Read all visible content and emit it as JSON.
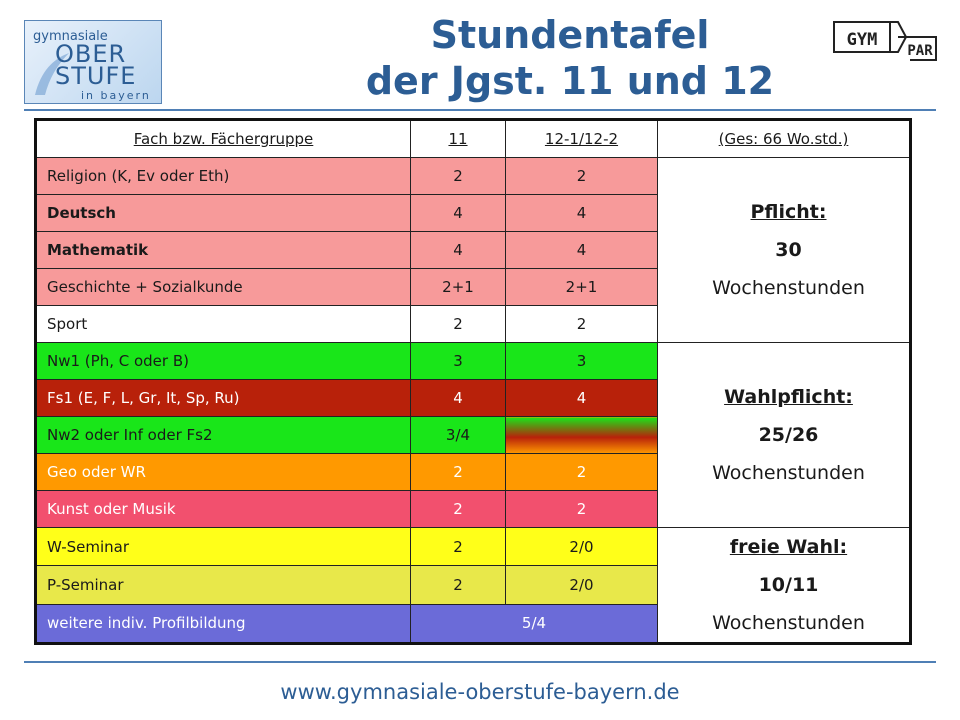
{
  "title": {
    "line1": "Stundentafel",
    "line2": "der Jgst. 11 und 12"
  },
  "logo_left": {
    "line1": "gymnasiale",
    "line2": "OBER",
    "line3": "STUFE",
    "line4": "in bayern"
  },
  "logo_right": {
    "left": "GYM",
    "right": "PAR"
  },
  "table": {
    "headers": [
      "Fach bzw. Fächergruppe",
      "11",
      "12-1/12-2",
      "(Ges: 66 Wo.std.)"
    ],
    "rows": [
      {
        "subject": "Religion (K, Ev oder Eth)",
        "y11": "2",
        "y12": "2",
        "color": "#f79a9a"
      },
      {
        "subject": "Deutsch",
        "y11": "4",
        "y12": "4",
        "color": "#f79a9a"
      },
      {
        "subject": "Mathematik",
        "y11": "4",
        "y12": "4",
        "color": "#f79a9a"
      },
      {
        "subject": "Geschichte + Sozialkunde",
        "y11": "2+1",
        "y12": "2+1",
        "color": "#f79a9a"
      },
      {
        "subject": "Sport",
        "y11": "2",
        "y12": "2",
        "color": "#ffffff"
      },
      {
        "subject": "Nw1 (Ph, C oder B)",
        "y11": "3",
        "y12": "3",
        "color": "#19e619"
      },
      {
        "subject": "Fs1 (E, F, L, Gr, It, Sp, Ru)",
        "y11": "4",
        "y12": "4",
        "color": "#b8210a"
      },
      {
        "subject": "Nw2 oder Inf oder Fs2",
        "y11": "3/4",
        "y12": "",
        "color": "#19e619"
      },
      {
        "subject": "Geo oder WR",
        "y11": "2",
        "y12": "2",
        "color": "#ff9900"
      },
      {
        "subject": "Kunst oder Musik",
        "y11": "2",
        "y12": "2",
        "color": "#f2506e"
      },
      {
        "subject": "W-Seminar",
        "y11": "2",
        "y12": "2/0",
        "color": "#ffff19"
      },
      {
        "subject": "P-Seminar",
        "y11": "2",
        "y12": "2/0",
        "color": "#e8e84a"
      },
      {
        "subject": "weitere indiv. Profilbildung",
        "y11_y12": "5/4",
        "color": "#6b6bd8"
      }
    ],
    "groups": [
      {
        "heading": "Pflicht:",
        "hours": "30",
        "unit": "Wochenstunden"
      },
      {
        "heading": "Wahlpflicht:",
        "hours": "25/26",
        "unit": "Wochenstunden"
      },
      {
        "heading": "freie Wahl:",
        "hours": "10/11",
        "unit": "Wochenstunden"
      }
    ]
  },
  "footer": {
    "url": "www.gymnasiale-oberstufe-bayern.de"
  }
}
